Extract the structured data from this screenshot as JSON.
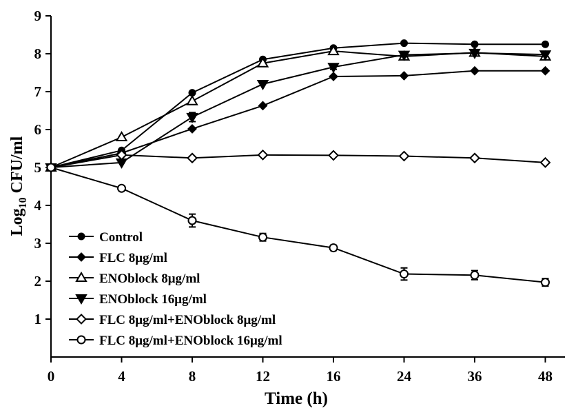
{
  "chart_data": {
    "type": "line",
    "xlabel": "Time (h)",
    "ylabel_main": "Log",
    "ylabel_sub": "10",
    "ylabel_rest": " CFU/ml",
    "categories": [
      "0",
      "4",
      "8",
      "12",
      "16",
      "24",
      "36",
      "48"
    ],
    "ylim": [
      0,
      9
    ],
    "yticks": [
      "1",
      "2",
      "3",
      "4",
      "5",
      "6",
      "7",
      "8",
      "9"
    ],
    "grid": false,
    "legend_position": "bottom-left",
    "series": [
      {
        "name": "Control",
        "marker": "circle-filled",
        "values": [
          5.0,
          5.45,
          6.97,
          7.85,
          8.15,
          8.28,
          8.25,
          8.25
        ],
        "err": [
          0,
          0,
          0,
          0,
          0,
          0,
          0,
          0
        ]
      },
      {
        "name": "FLC 8μg/ml",
        "marker": "diamond-filled",
        "values": [
          5.0,
          5.38,
          6.02,
          6.63,
          7.4,
          7.42,
          7.55,
          7.55
        ],
        "err": [
          0,
          0,
          0,
          0,
          0,
          0,
          0,
          0
        ]
      },
      {
        "name": "ENOblock 8μg/ml",
        "marker": "triangle-up-open",
        "values": [
          5.0,
          5.8,
          6.75,
          7.75,
          8.07,
          7.93,
          8.03,
          7.93
        ],
        "err": [
          0,
          0,
          0,
          0,
          0,
          0,
          0,
          0
        ]
      },
      {
        "name": "ENOblock 16μg/ml",
        "marker": "triangle-down-filled",
        "values": [
          5.0,
          5.13,
          6.33,
          7.2,
          7.65,
          7.97,
          8.02,
          7.98
        ],
        "err": [
          0,
          0,
          0.12,
          0,
          0.06,
          0,
          0,
          0
        ]
      },
      {
        "name": "FLC 8μg/ml+ENOblock 8μg/ml",
        "marker": "diamond-open",
        "values": [
          5.0,
          5.33,
          5.25,
          5.33,
          5.32,
          5.3,
          5.25,
          5.13
        ],
        "err": [
          0,
          0,
          0,
          0,
          0,
          0,
          0,
          0
        ]
      },
      {
        "name": "FLC 8μg/ml+ENOblock 16μg/ml",
        "marker": "circle-open",
        "values": [
          5.0,
          4.45,
          3.6,
          3.16,
          2.88,
          2.19,
          2.16,
          1.97
        ],
        "err": [
          0,
          0,
          0.17,
          0.1,
          0.07,
          0.16,
          0.12,
          0.1
        ]
      }
    ]
  }
}
